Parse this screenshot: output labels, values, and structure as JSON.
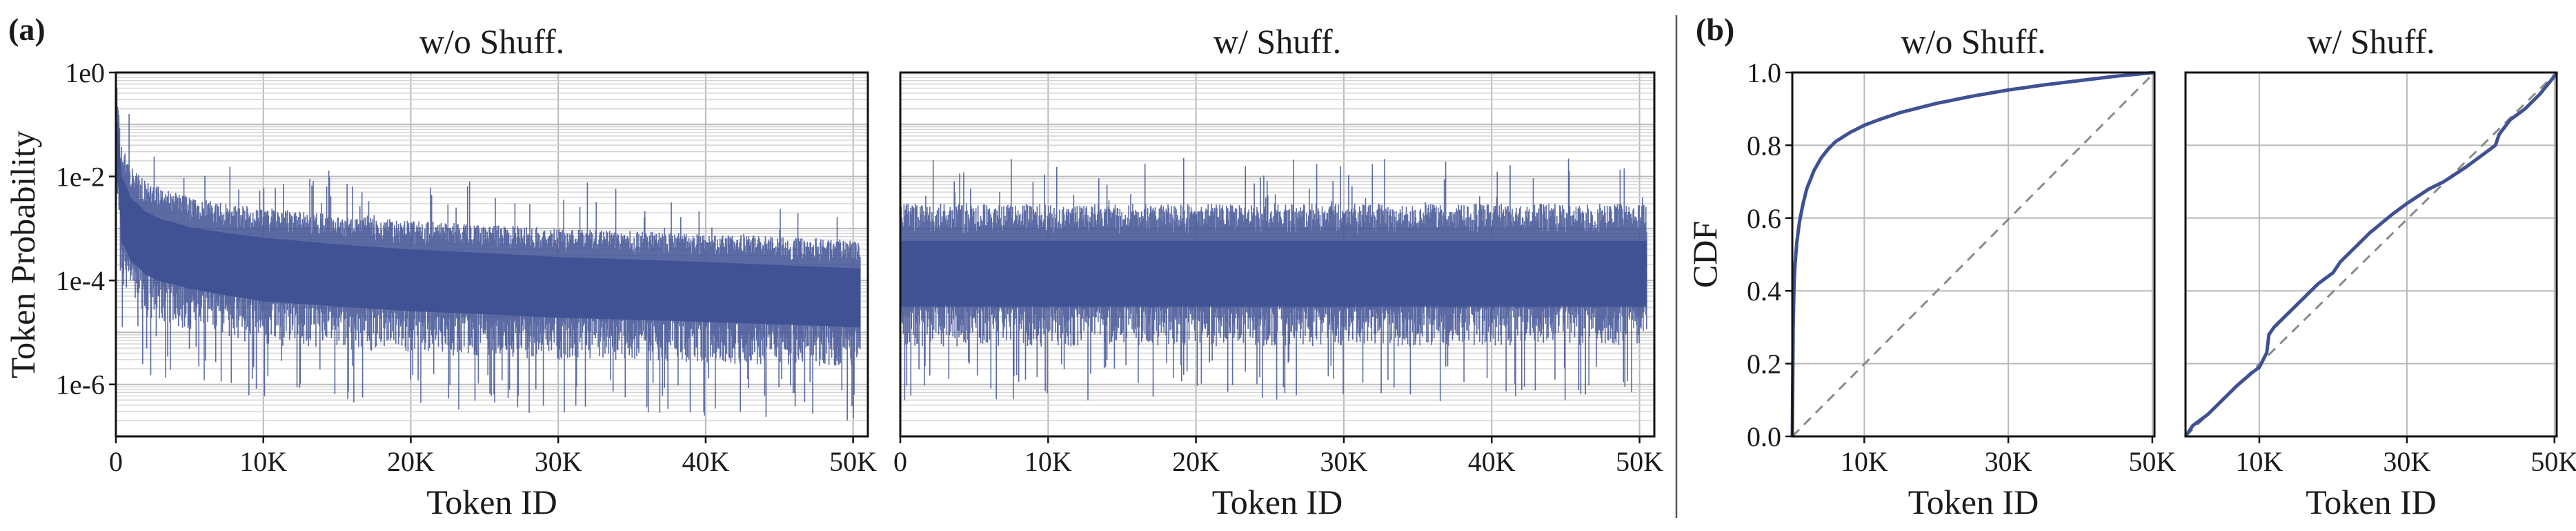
{
  "figure": {
    "label_a": "(a)",
    "label_b": "(b)"
  },
  "colors": {
    "series": "#3f5193",
    "diagonal": "#8a8a8a",
    "grid": "#b9b9b9"
  },
  "chart_data": [
    {
      "id": "prob_wo_shuffle",
      "type": "area",
      "title": "w/o Shuff.",
      "xlabel": "Token ID",
      "ylabel": "Token Probability",
      "xlim": [
        0,
        51000
      ],
      "ylim": [
        1e-07,
        1
      ],
      "yscale": "log",
      "grid": true,
      "xticks": [
        0,
        10000,
        20000,
        30000,
        40000,
        50000
      ],
      "xtick_labels": [
        "0",
        "10K",
        "20K",
        "30K",
        "40K",
        "50K"
      ],
      "yticks": [
        1,
        0.01,
        0.0001,
        1e-06
      ],
      "ytick_labels": [
        "1e0",
        "1e-2",
        "1e-4",
        "1e-6"
      ],
      "envelope": {
        "x": [
          0,
          300,
          1000,
          2000,
          3000,
          5000,
          7500,
          10000,
          15000,
          20000,
          25000,
          30000,
          35000,
          40000,
          45000,
          50500
        ],
        "upper": [
          0.8,
          0.05,
          0.015,
          0.008,
          0.006,
          0.004,
          0.003,
          0.0025,
          0.0018,
          0.0014,
          0.0012,
          0.001,
          0.0009,
          0.0008,
          0.0007,
          0.0006
        ],
        "median": [
          0.05,
          0.003,
          0.0012,
          0.0007,
          0.0005,
          0.00035,
          0.00028,
          0.00022,
          0.00017,
          0.00014,
          0.00012,
          0.0001,
          9e-05,
          8e-05,
          7e-05,
          6e-05
        ],
        "lower": [
          0.002,
          5e-05,
          2e-05,
          1e-05,
          8e-06,
          6e-06,
          4e-06,
          3e-06,
          2.5e-06,
          2e-06,
          1.8e-06,
          1.6e-06,
          1.5e-06,
          1.4e-06,
          1.3e-06,
          1.2e-06
        ]
      }
    },
    {
      "id": "prob_w_shuffle",
      "type": "area",
      "title": "w/ Shuff.",
      "xlabel": "Token ID",
      "ylabel": "",
      "xlim": [
        0,
        51000
      ],
      "ylim": [
        1e-07,
        1
      ],
      "yscale": "log",
      "grid": true,
      "xticks": [
        0,
        10000,
        20000,
        30000,
        40000,
        50000
      ],
      "xtick_labels": [
        "0",
        "10K",
        "20K",
        "30K",
        "40K",
        "50K"
      ],
      "envelope": {
        "x": [
          0,
          50500
        ],
        "upper": [
          0.003,
          0.003
        ],
        "median": [
          0.00015,
          0.00015
        ],
        "lower": [
          3e-06,
          3e-06
        ]
      }
    },
    {
      "id": "cdf_wo_shuffle",
      "type": "line",
      "title": "w/o Shuff.",
      "xlabel": "Token ID",
      "ylabel": "CDF",
      "xlim": [
        0,
        50300
      ],
      "ylim": [
        0,
        1
      ],
      "grid": true,
      "xticks": [
        10000,
        30000,
        50000
      ],
      "xtick_labels": [
        "10K",
        "30K",
        "50K"
      ],
      "yticks": [
        0,
        0.2,
        0.4,
        0.6,
        0.8,
        1.0
      ],
      "ytick_labels": [
        "0.0",
        "0.2",
        "0.4",
        "0.6",
        "0.8",
        "1.0"
      ],
      "series": [
        {
          "x": [
            0,
            150,
            300,
            600,
            1000,
            1500,
            2000,
            3000,
            4000,
            5000,
            6000,
            8000,
            10000,
            12000,
            15000,
            20000,
            25000,
            30000,
            35000,
            40000,
            45000,
            50300
          ],
          "y": [
            0,
            0.36,
            0.45,
            0.53,
            0.59,
            0.64,
            0.68,
            0.73,
            0.765,
            0.79,
            0.81,
            0.835,
            0.855,
            0.87,
            0.89,
            0.915,
            0.935,
            0.952,
            0.966,
            0.978,
            0.99,
            1.0
          ]
        }
      ],
      "reference_line": {
        "x": [
          0,
          50300
        ],
        "y": [
          0,
          1
        ],
        "style": "dashed"
      }
    },
    {
      "id": "cdf_w_shuffle",
      "type": "line",
      "title": "w/ Shuff.",
      "xlabel": "Token ID",
      "ylabel": "",
      "xlim": [
        0,
        50300
      ],
      "ylim": [
        0,
        1
      ],
      "grid": true,
      "xticks": [
        10000,
        30000,
        50000
      ],
      "xtick_labels": [
        "10K",
        "30K",
        "50K"
      ],
      "series": [
        {
          "x": [
            0,
            1000,
            3000,
            5000,
            7000,
            9000,
            10000,
            11000,
            11300,
            12000,
            15000,
            18000,
            20000,
            21000,
            23000,
            25000,
            28000,
            30000,
            33000,
            35000,
            38000,
            40000,
            42000,
            42500,
            44000,
            46000,
            48000,
            50000,
            50300
          ],
          "y": [
            0,
            0.03,
            0.06,
            0.1,
            0.14,
            0.175,
            0.19,
            0.23,
            0.28,
            0.3,
            0.36,
            0.42,
            0.45,
            0.48,
            0.52,
            0.56,
            0.61,
            0.64,
            0.68,
            0.7,
            0.74,
            0.77,
            0.8,
            0.83,
            0.87,
            0.9,
            0.94,
            0.99,
            1.0
          ]
        }
      ],
      "reference_line": {
        "x": [
          0,
          50300
        ],
        "y": [
          0,
          1
        ],
        "style": "dashed"
      }
    }
  ]
}
